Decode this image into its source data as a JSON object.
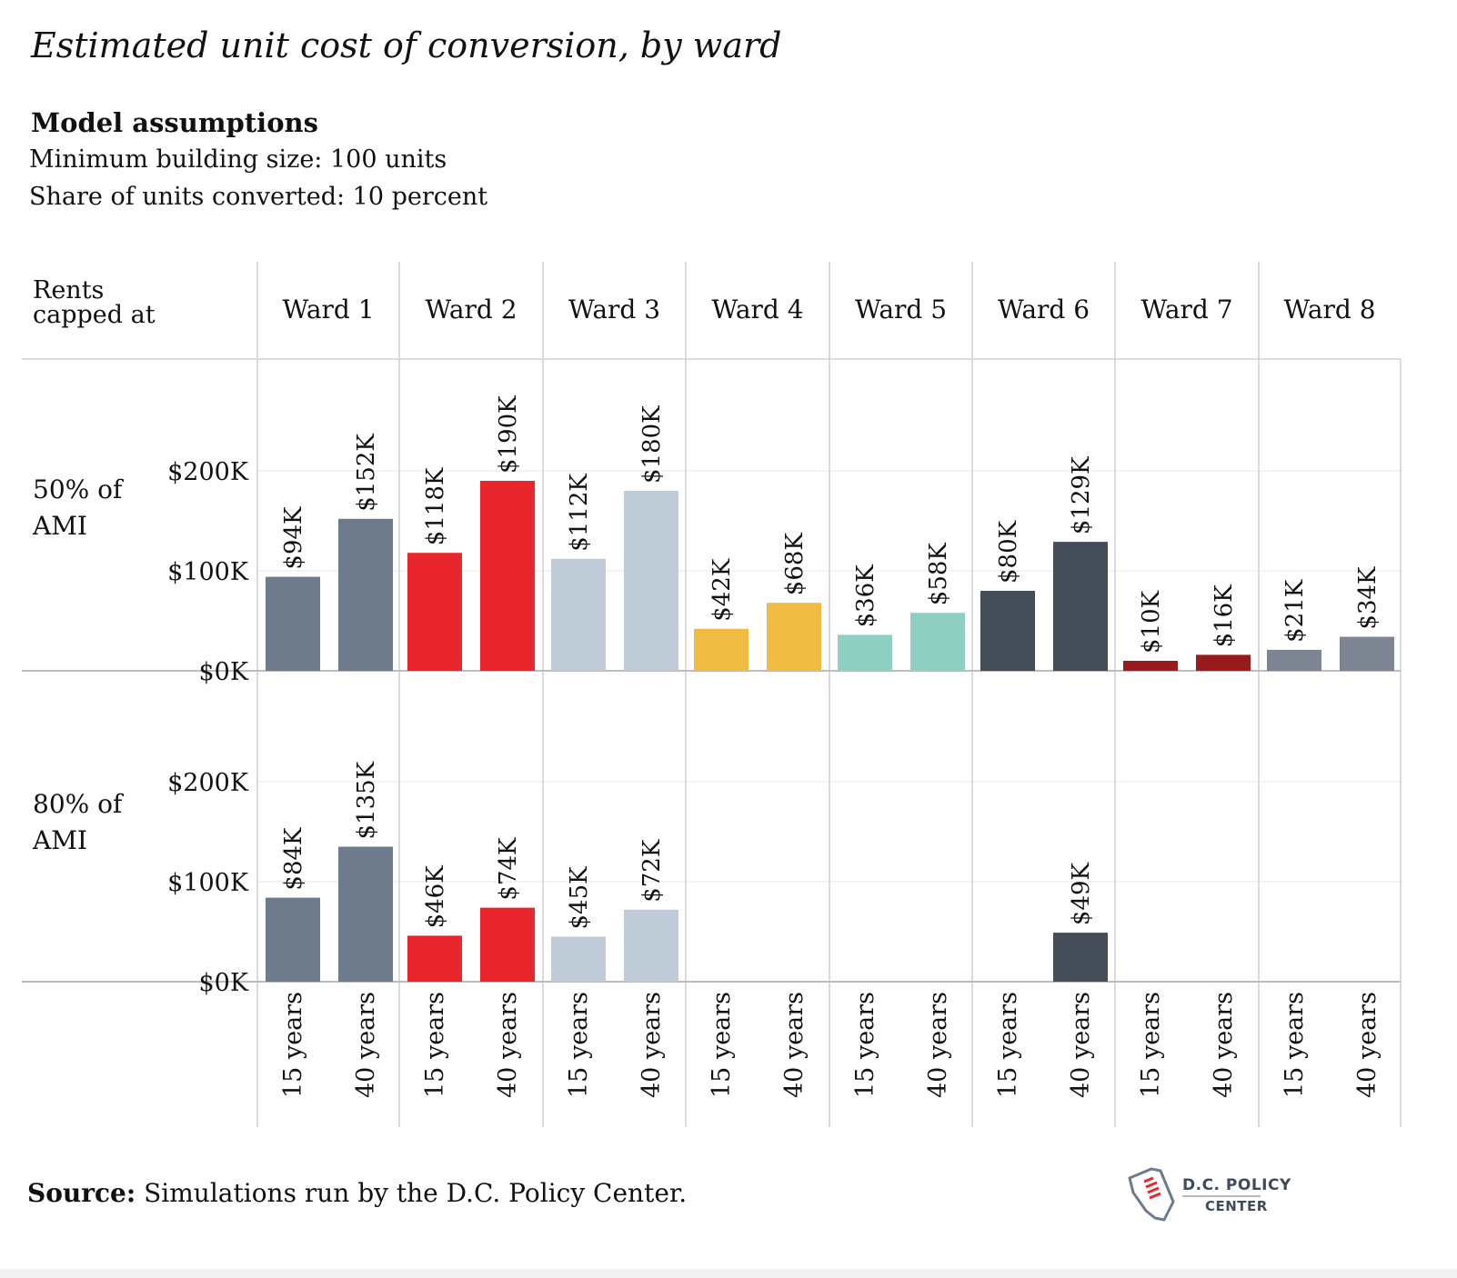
{
  "title": "Estimated unit cost of conversion, by ward",
  "assumptions": {
    "heading": "Model assumptions",
    "line1": "Minimum building size: 100 units",
    "line2": "Share of units converted: 10 percent"
  },
  "source": {
    "label": "Source:",
    "text": " Simulations run by the D.C. Policy Center."
  },
  "logo": {
    "line1": "D.C. POLICY",
    "line2": "CENTER"
  },
  "chart_data": {
    "type": "bar",
    "row_header": "Rents capped at",
    "row_header_lines": [
      "Rents",
      "capped at"
    ],
    "columns": [
      "Ward 1",
      "Ward 2",
      "Ward 3",
      "Ward 4",
      "Ward 5",
      "Ward 6",
      "Ward 7",
      "Ward 8"
    ],
    "categories": [
      "15 years",
      "40 years"
    ],
    "yticks": [
      "$0K",
      "$100K",
      "$200K"
    ],
    "ylim": [
      0,
      260
    ],
    "grid": true,
    "colors": {
      "Ward 1": "#6e7b8b",
      "Ward 2": "#e8262c",
      "Ward 3": "#bfccd8",
      "Ward 4": "#f0bb42",
      "Ward 5": "#8ecfc2",
      "Ward 6": "#454e58",
      "Ward 7": "#9a1b1e",
      "Ward 8": "#7c8591"
    },
    "rows": [
      {
        "label": "50% of AMI",
        "label_lines": [
          "50% of",
          "AMI"
        ],
        "values": [
          [
            94,
            152
          ],
          [
            118,
            190
          ],
          [
            112,
            180
          ],
          [
            42,
            68
          ],
          [
            36,
            58
          ],
          [
            80,
            129
          ],
          [
            10,
            16
          ],
          [
            21,
            34
          ]
        ],
        "value_labels": [
          [
            "$94K",
            "$152K"
          ],
          [
            "$118K",
            "$190K"
          ],
          [
            "$112K",
            "$180K"
          ],
          [
            "$42K",
            "$68K"
          ],
          [
            "$36K",
            "$58K"
          ],
          [
            "$80K",
            "$129K"
          ],
          [
            "$10K",
            "$16K"
          ],
          [
            "$21K",
            "$34K"
          ]
        ]
      },
      {
        "label": "80% of AMI",
        "label_lines": [
          "80% of",
          "AMI"
        ],
        "values": [
          [
            84,
            135
          ],
          [
            46,
            74
          ],
          [
            45,
            72
          ],
          [
            null,
            null
          ],
          [
            null,
            null
          ],
          [
            null,
            49
          ],
          [
            null,
            null
          ],
          [
            null,
            null
          ]
        ],
        "value_labels": [
          [
            "$84K",
            "$135K"
          ],
          [
            "$46K",
            "$74K"
          ],
          [
            "$45K",
            "$72K"
          ],
          [
            null,
            null
          ],
          [
            null,
            null
          ],
          [
            null,
            "$49K"
          ],
          [
            null,
            null
          ],
          [
            null,
            null
          ]
        ]
      }
    ]
  }
}
